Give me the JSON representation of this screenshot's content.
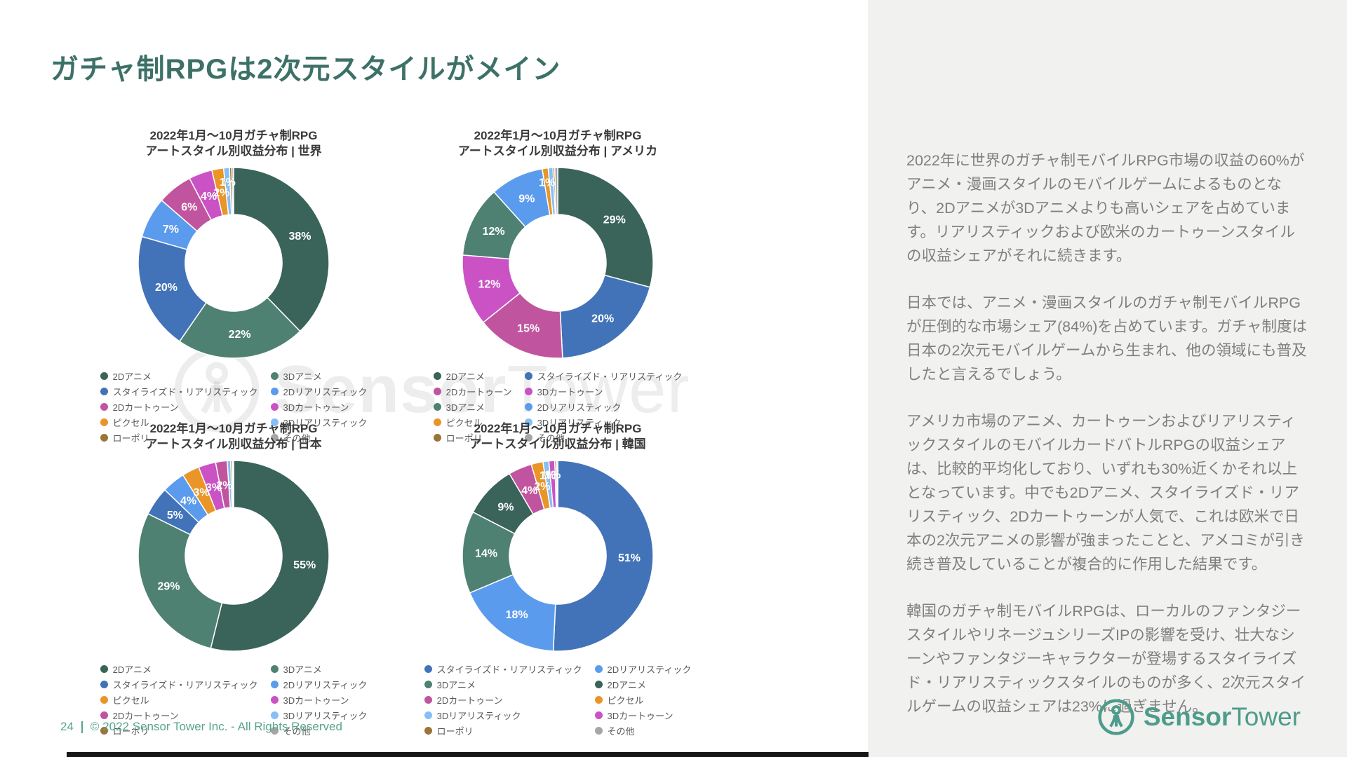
{
  "page": {
    "title": "ガチャ制RPGは2次元スタイルがメイン"
  },
  "footer": {
    "page_number": "24",
    "copyright": "© 2022 Sensor Tower Inc. - All Rights Reserved"
  },
  "brand": {
    "name_bold": "Sensor",
    "name_light": "Tower"
  },
  "ui_colors": {
    "title_teal": "#3D7168",
    "footer_teal": "#57A48E",
    "logo_teal": "#4E9C8B",
    "sidebar_bg": "#F1F1EF",
    "sidebar_text_gray": "#7F7F7F",
    "chart_title": "#3A3A3A",
    "legend_text": "#595959"
  },
  "palette": {
    "2Dアニメ": "#3A635A",
    "3Dアニメ": "#4F8173",
    "スタイライズド・リアリスティック": "#4273B8",
    "2Dリアリスティック": "#5B9BEE",
    "2Dカートゥーン": "#C1549E",
    "3Dカートゥーン": "#CA52C5",
    "ピクセル": "#E99527",
    "3Dリアリスティック": "#85BFF5",
    "ローポリ": "#9B7439",
    "その他": "#A6A6A6"
  },
  "chart_data": [
    {
      "type": "pie",
      "title_line1": "2022年1月〜10月ガチャ制RPG",
      "title_line2": "アートスタイル別収益分布 | 世界",
      "legend_position": "bottom",
      "slices": [
        {
          "style": "2Dアニメ",
          "value": 38,
          "label": "38%"
        },
        {
          "style": "3Dアニメ",
          "value": 22,
          "label": "22%"
        },
        {
          "style": "スタイライズド・リアリスティック",
          "value": 20,
          "label": "20%"
        },
        {
          "style": "2Dリアリスティック",
          "value": 7,
          "label": "7%"
        },
        {
          "style": "2Dカートゥーン",
          "value": 6,
          "label": "6%"
        },
        {
          "style": "3Dカートゥーン",
          "value": 4,
          "label": "4%"
        },
        {
          "style": "ピクセル",
          "value": 2,
          "label": "2%"
        },
        {
          "style": "3Dリアリスティック",
          "value": 1,
          "label": "1%"
        },
        {
          "style": "ローポリ",
          "value": 0.4,
          "label": ""
        },
        {
          "style": "その他",
          "value": 0.3,
          "label": ""
        }
      ]
    },
    {
      "type": "pie",
      "title_line1": "2022年1月〜10月ガチャ制RPG",
      "title_line2": "アートスタイル別収益分布 | アメリカ",
      "legend_position": "bottom",
      "slices": [
        {
          "style": "2Dアニメ",
          "value": 29,
          "label": "29%"
        },
        {
          "style": "スタイライズド・リアリスティック",
          "value": 20,
          "label": "20%"
        },
        {
          "style": "2Dカートゥーン",
          "value": 15,
          "label": "15%"
        },
        {
          "style": "3Dカートゥーン",
          "value": 12,
          "label": "12%"
        },
        {
          "style": "3Dアニメ",
          "value": 12,
          "label": "12%"
        },
        {
          "style": "2Dリアリスティック",
          "value": 9,
          "label": "9%"
        },
        {
          "style": "ピクセル",
          "value": 1,
          "label": "1%"
        },
        {
          "style": "3Dリアリスティック",
          "value": 0.8,
          "label": ""
        },
        {
          "style": "ローポリ",
          "value": 0.3,
          "label": ""
        },
        {
          "style": "その他",
          "value": 0.5,
          "label": ""
        }
      ]
    },
    {
      "type": "pie",
      "title_line1": "2022年1月〜10月ガチャ制RPG",
      "title_line2": "アートスタイル別収益分布 | 日本",
      "legend_position": "bottom",
      "slices": [
        {
          "style": "2Dアニメ",
          "value": 55,
          "label": "55%"
        },
        {
          "style": "3Dアニメ",
          "value": 29,
          "label": "29%"
        },
        {
          "style": "スタイライズド・リアリスティック",
          "value": 5,
          "label": "5%"
        },
        {
          "style": "2Dリアリスティック",
          "value": 4,
          "label": "4%"
        },
        {
          "style": "ピクセル",
          "value": 3,
          "label": "3%"
        },
        {
          "style": "3Dカートゥーン",
          "value": 3,
          "label": "3%"
        },
        {
          "style": "2Dカートゥーン",
          "value": 2,
          "label": "2%"
        },
        {
          "style": "3Dリアリスティック",
          "value": 0.6,
          "label": ""
        },
        {
          "style": "ローポリ",
          "value": 0.3,
          "label": ""
        },
        {
          "style": "その他",
          "value": 0.2,
          "label": ""
        }
      ]
    },
    {
      "type": "pie",
      "title_line1": "2022年1月〜10月ガチャ制RPG",
      "title_line2": "アートスタイル別収益分布 | 韓国",
      "legend_position": "bottom",
      "slices": [
        {
          "style": "スタイライズド・リアリスティック",
          "value": 51,
          "label": "51%"
        },
        {
          "style": "2Dリアリスティック",
          "value": 18,
          "label": "18%"
        },
        {
          "style": "3Dアニメ",
          "value": 14,
          "label": "14%"
        },
        {
          "style": "2Dアニメ",
          "value": 9,
          "label": "9%"
        },
        {
          "style": "2Dカートゥーン",
          "value": 4,
          "label": "4%"
        },
        {
          "style": "ピクセル",
          "value": 2,
          "label": "2%"
        },
        {
          "style": "3Dリアリスティック",
          "value": 1,
          "label": "1%"
        },
        {
          "style": "3Dカートゥーン",
          "value": 1,
          "label": "1%"
        },
        {
          "style": "ローポリ",
          "value": 0.3,
          "label": ""
        },
        {
          "style": "その他",
          "value": 0.2,
          "label": ""
        }
      ]
    }
  ],
  "sidebar_text": {
    "paragraphs": [
      "2022年に世界のガチャ制モバイルRPG市場の収益の60%がアニメ・漫画スタイルのモバイルゲームによるものとなり、2Dアニメが3Dアニメよりも高いシェアを占めています。リアリスティックおよび欧米のカートゥーンスタイルの収益シェアがそれに続きます。",
      "日本では、アニメ・漫画スタイルのガチャ制モバイルRPGが圧倒的な市場シェア(84%)を占めています。ガチャ制度は日本の2次元モバイルゲームから生まれ、他の領域にも普及したと言えるでしょう。",
      "アメリカ市場のアニメ、カートゥーンおよびリアリスティックスタイルのモバイルカードバトルRPGの収益シェアは、比較的平均化しており、いずれも30%近くかそれ以上となっています。中でも2Dアニメ、スタイライズド・リアリスティック、2Dカートゥーンが人気で、これは欧米で日本の2次元アニメの影響が強まったことと、アメコミが引き続き普及していることが複合的に作用した結果です。",
      "韓国のガチャ制モバイルRPGは、ローカルのファンタジースタイルやリネージュシリーズIPの影響を受け、壮大なシーンやファンタジーキャラクターが登場するスタイライズド・リアリスティックスタイルのものが多く、2次元スタイルゲームの収益シェアは23%に過ぎません。"
    ]
  }
}
